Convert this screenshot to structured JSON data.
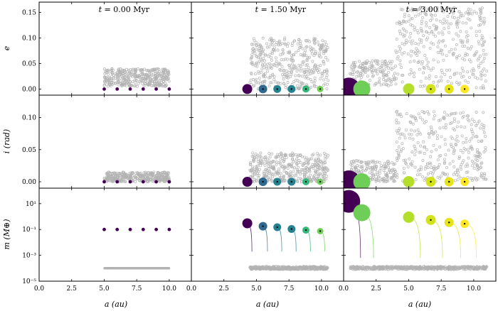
{
  "chart_data": {
    "type": "scatter",
    "layout": "3x3 grid, shared axes",
    "columns": [
      {
        "annotation": "t = 0.00 Myr",
        "t_label": "t",
        "t_text": " = 0.00 Myr"
      },
      {
        "annotation": "t = 1.50 Myr",
        "t_label": "t",
        "t_text": " = 1.50 Myr"
      },
      {
        "annotation": "t = 3.00 Myr",
        "t_label": "t",
        "t_text": " = 3.00 Myr"
      }
    ],
    "rows": [
      {
        "quantity": "e",
        "ylabel": "e",
        "ylim": [
          -0.012,
          0.17
        ],
        "scale": "linear",
        "yticks": [
          "0.00",
          "0.05",
          "0.10",
          "0.15"
        ],
        "ytick_values": [
          0,
          0.05,
          0.1,
          0.15
        ]
      },
      {
        "quantity": "i",
        "ylabel": "i (rad)",
        "ylim": [
          -0.01,
          0.135
        ],
        "scale": "linear",
        "yticks": [
          "0.00",
          "0.05",
          "0.10"
        ],
        "ytick_values": [
          0,
          0.05,
          0.1
        ]
      },
      {
        "quantity": "m",
        "ylabel": "m (M⊕)",
        "ylim_log10": [
          -5,
          2.2
        ],
        "scale": "log",
        "yticks": [
          "10¹",
          "10⁻¹",
          "10⁻³",
          "10⁻⁵"
        ],
        "ytick_values": [
          1,
          -1,
          -3,
          -5
        ]
      }
    ],
    "xlabel": "a (au)",
    "xlim": [
      0,
      11.7
    ],
    "xticks": [
      "0.0",
      "2.5",
      "5.0",
      "7.5",
      "10.0"
    ],
    "xtick_values": [
      0,
      2.5,
      5,
      7.5,
      10
    ],
    "colormap": [
      "#440154",
      "#31688e",
      "#26828e",
      "#35b779",
      "#6ece58",
      "#b5de2b",
      "#fde725"
    ],
    "planetesimal_color": "#b3b3b3",
    "embryos": [
      [
        {
          "a": 5.0,
          "e": 0,
          "i": 0,
          "m": 0.1,
          "color": "#440154"
        },
        {
          "a": 6.0,
          "e": 0,
          "i": 0,
          "m": 0.1,
          "color": "#440154"
        },
        {
          "a": 7.0,
          "e": 0,
          "i": 0,
          "m": 0.1,
          "color": "#440154"
        },
        {
          "a": 8.0,
          "e": 0,
          "i": 0,
          "m": 0.1,
          "color": "#440154"
        },
        {
          "a": 9.0,
          "e": 0,
          "i": 0,
          "m": 0.1,
          "color": "#440154"
        },
        {
          "a": 10.0,
          "e": 0,
          "i": 0,
          "m": 0.1,
          "color": "#440154"
        }
      ],
      [
        {
          "a": 4.3,
          "e": 0,
          "i": 0,
          "m": 0.3,
          "color": "#440154",
          "size": 12
        },
        {
          "a": 5.5,
          "e": 0,
          "i": 0,
          "m": 0.18,
          "color": "#31688e",
          "size": 10
        },
        {
          "a": 6.6,
          "e": 0,
          "i": 0,
          "m": 0.15,
          "color": "#26828e",
          "size": 9
        },
        {
          "a": 7.7,
          "e": 0,
          "i": 0,
          "m": 0.11,
          "color": "#26828e",
          "size": 9
        },
        {
          "a": 8.8,
          "e": 0,
          "i": 0,
          "m": 0.09,
          "color": "#35b779",
          "size": 8
        },
        {
          "a": 9.9,
          "e": 0,
          "i": 0,
          "m": 0.075,
          "color": "#6ece58",
          "size": 7
        }
      ],
      [
        {
          "a": 0.4,
          "e": 0,
          "i": 0,
          "m": 15,
          "color": "#440154",
          "size": 30
        },
        {
          "a": 1.4,
          "e": 0,
          "i": 0,
          "m": 2.0,
          "color": "#6ece58",
          "size": 22
        },
        {
          "a": 5.0,
          "e": 0,
          "i": 0,
          "m": 0.9,
          "color": "#b5de2b",
          "size": 14
        },
        {
          "a": 6.7,
          "e": 0,
          "i": 0,
          "m": 0.55,
          "color": "#d2e21b",
          "size": 12
        },
        {
          "a": 8.1,
          "e": 0,
          "i": 0,
          "m": 0.35,
          "color": "#e5e419",
          "size": 11
        },
        {
          "a": 9.3,
          "e": 0,
          "i": 0,
          "m": 0.28,
          "color": "#fde725",
          "size": 10
        }
      ]
    ],
    "planetesimals": [
      {
        "a_range": [
          5.0,
          10.0
        ],
        "e_max": 0.04,
        "i_max": 0.015,
        "m": 0.0001
      },
      {
        "a_range": [
          4.5,
          10.5
        ],
        "e_max": 0.1,
        "i_max": 0.045,
        "m": 0.0001
      },
      {
        "a_range": [
          0.5,
          11.0
        ],
        "e_max": 0.16,
        "i_max": 0.11,
        "m": 0.0001
      }
    ]
  }
}
